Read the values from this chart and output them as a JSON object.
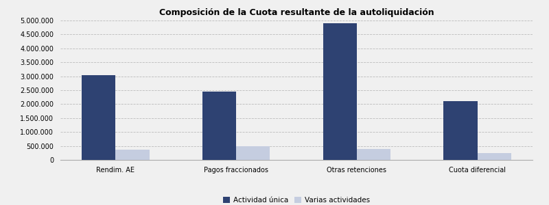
{
  "title": "Composición de la Cuota resultante de la autoliquidación",
  "categories": [
    "Rendim. AE",
    "Pagos fraccionados",
    "Otras retenciones",
    "Cuota diferencial"
  ],
  "actividad_unica": [
    3050000,
    2460000,
    4900000,
    2100000
  ],
  "varias_actividades": [
    370000,
    490000,
    390000,
    255000
  ],
  "color_unica": "#2e4272",
  "color_varias": "#c5cde0",
  "ylim": [
    0,
    5000000
  ],
  "yticks": [
    0,
    500000,
    1000000,
    1500000,
    2000000,
    2500000,
    3000000,
    3500000,
    4000000,
    4500000,
    5000000
  ],
  "legend_labels": [
    "Actividad única",
    "Varias actividades"
  ],
  "background_color": "#f0f0f0",
  "grid_color": "#bbbbbb",
  "title_fontsize": 9,
  "tick_fontsize": 7,
  "legend_fontsize": 7.5,
  "bar_width": 0.28
}
